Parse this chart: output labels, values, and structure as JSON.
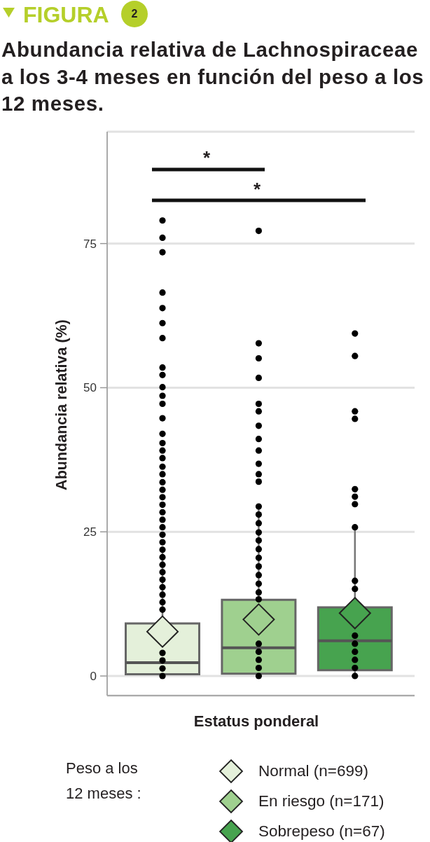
{
  "chart_data": {
    "type": "box",
    "title": "Abundancia relativa de Lachnospiraceae a los 3-4 meses en función del peso a los 12 meses.",
    "annotations": [
      "FIGURA",
      "2",
      "*",
      "*"
    ],
    "xlabel": "Estatus ponderal",
    "ylabel": "Abundancia relativa (%)",
    "legend_title": "Peso a los 12 meses :",
    "categories": [
      null,
      null,
      null
    ],
    "series": [
      {
        "name": "Normal (n=699)",
        "color": "#e4f0da",
        "boxes": [
          {
            "low": 0,
            "q1": 0.3,
            "median": 2.3,
            "q3": 9.1,
            "high": 22.5,
            "mean": 7.7
          },
          null,
          null
        ]
      },
      {
        "name": "En riesgo (n=171)",
        "color": "#9fd08f",
        "boxes": [
          null,
          {
            "low": 0,
            "q1": 0.4,
            "median": 4.9,
            "q3": 13.2,
            "high": 29.2,
            "mean": 9.8
          },
          null
        ]
      },
      {
        "name": "Sobrepeso (n=67)",
        "color": "#47a34f",
        "boxes": [
          null,
          null,
          {
            "low": 0,
            "q1": 1.0,
            "median": 6.1,
            "q3": 11.9,
            "high": 25.6,
            "mean": 10.9
          }
        ]
      },
      {
        "type": "scatter",
        "color": "#000000",
        "marker": "circle",
        "values": [
          79,
          77.2,
          59.4
        ]
      },
      {
        "type": "scatter",
        "color": "#000000",
        "marker": "circle",
        "values": [
          76,
          57.7,
          55.5
        ]
      },
      {
        "type": "scatter",
        "color": "#000000",
        "marker": "circle",
        "values": [
          73.5,
          55.1,
          45.9
        ]
      },
      {
        "type": "scatter",
        "color": "#000000",
        "marker": "circle",
        "values": [
          66.5,
          51.7,
          44.6
        ]
      },
      {
        "type": "scatter",
        "color": "#000000",
        "marker": "circle",
        "values": [
          63.8,
          47.2,
          32.4
        ]
      },
      {
        "type": "scatter",
        "color": "#000000",
        "marker": "circle",
        "values": [
          61.2,
          45.9,
          31.1
        ]
      },
      {
        "type": "scatter",
        "color": "#000000",
        "marker": "circle",
        "values": [
          58.6,
          43.4,
          29.8
        ]
      },
      {
        "type": "scatter",
        "color": "#000000",
        "marker": "circle",
        "values": [
          53.5,
          41.1,
          25.8
        ]
      },
      {
        "type": "scatter",
        "color": "#000000",
        "marker": "circle",
        "values": [
          52.2,
          39.1,
          16.5
        ]
      },
      {
        "type": "scatter",
        "color": "#000000",
        "marker": "circle",
        "values": [
          50.1,
          36.8,
          15.1
        ]
      },
      {
        "type": "scatter",
        "color": "#000000",
        "marker": "circle",
        "values": [
          48.6,
          35,
          7
        ]
      },
      {
        "type": "scatter",
        "color": "#000000",
        "marker": "circle",
        "values": [
          47.2,
          33.7,
          5.6
        ]
      },
      {
        "type": "scatter",
        "color": "#000000",
        "marker": "circle",
        "values": [
          44.7,
          29.4,
          4.2
        ]
      },
      {
        "type": "scatter",
        "color": "#000000",
        "marker": "circle",
        "values": [
          42,
          28,
          2.8
        ]
      },
      {
        "type": "scatter",
        "color": "#000000",
        "marker": "circle",
        "values": [
          40.4,
          26.5,
          1.4
        ]
      },
      {
        "type": "scatter",
        "color": "#000000",
        "marker": "circle",
        "values": [
          39.1,
          24.9,
          0
        ]
      },
      {
        "type": "scatter",
        "color": "#000000",
        "marker": "circle",
        "values": [
          37.8,
          23.5,
          null
        ]
      },
      {
        "type": "scatter",
        "color": "#000000",
        "marker": "circle",
        "values": [
          36.3,
          22,
          null
        ]
      },
      {
        "type": "scatter",
        "color": "#000000",
        "marker": "circle",
        "values": [
          35,
          20.5,
          null
        ]
      },
      {
        "type": "scatter",
        "color": "#000000",
        "marker": "circle",
        "values": [
          33.6,
          19,
          null
        ]
      },
      {
        "type": "scatter",
        "color": "#000000",
        "marker": "circle",
        "values": [
          32.3,
          17.5,
          null
        ]
      },
      {
        "type": "scatter",
        "color": "#000000",
        "marker": "circle",
        "values": [
          31,
          16,
          null
        ]
      },
      {
        "type": "scatter",
        "color": "#000000",
        "marker": "circle",
        "values": [
          29.7,
          14.5,
          null
        ]
      },
      {
        "type": "scatter",
        "color": "#000000",
        "marker": "circle",
        "values": [
          28.4,
          13.3,
          null
        ]
      },
      {
        "type": "scatter",
        "color": "#000000",
        "marker": "circle",
        "values": [
          27.1,
          5.6,
          null
        ]
      },
      {
        "type": "scatter",
        "color": "#000000",
        "marker": "circle",
        "values": [
          25.8,
          4.2,
          null
        ]
      },
      {
        "type": "scatter",
        "color": "#000000",
        "marker": "circle",
        "values": [
          24.5,
          2.8,
          null
        ]
      },
      {
        "type": "scatter",
        "color": "#000000",
        "marker": "circle",
        "values": [
          23.2,
          1.4,
          null
        ]
      },
      {
        "type": "scatter",
        "color": "#000000",
        "marker": "circle",
        "values": [
          21.9,
          0,
          null
        ]
      },
      {
        "type": "scatter",
        "color": "#000000",
        "marker": "circle",
        "values": [
          20.6,
          null,
          null
        ]
      },
      {
        "type": "scatter",
        "color": "#000000",
        "marker": "circle",
        "values": [
          19.3,
          null,
          null
        ]
      },
      {
        "type": "scatter",
        "color": "#000000",
        "marker": "circle",
        "values": [
          18,
          null,
          null
        ]
      },
      {
        "type": "scatter",
        "color": "#000000",
        "marker": "circle",
        "values": [
          16.7,
          null,
          null
        ]
      },
      {
        "type": "scatter",
        "color": "#000000",
        "marker": "circle",
        "values": [
          15.4,
          null,
          null
        ]
      },
      {
        "type": "scatter",
        "color": "#000000",
        "marker": "circle",
        "values": [
          14.1,
          null,
          null
        ]
      },
      {
        "type": "scatter",
        "color": "#000000",
        "marker": "circle",
        "values": [
          12.8,
          null,
          null
        ]
      },
      {
        "type": "scatter",
        "color": "#000000",
        "marker": "circle",
        "values": [
          11.5,
          null,
          null
        ]
      },
      {
        "type": "scatter",
        "color": "#000000",
        "marker": "circle",
        "values": [
          4,
          null,
          null
        ]
      },
      {
        "type": "scatter",
        "color": "#000000",
        "marker": "circle",
        "values": [
          2.7,
          null,
          null
        ]
      },
      {
        "type": "scatter",
        "color": "#000000",
        "marker": "circle",
        "values": [
          1.3,
          null,
          null
        ]
      },
      {
        "type": "scatter",
        "color": "#000000",
        "marker": "circle",
        "values": [
          0,
          null,
          null
        ]
      }
    ],
    "ylim": [
      -3.4,
      94.4
    ],
    "yticks": [
      0,
      25,
      50,
      75
    ],
    "grid": "y",
    "legend": "bottom",
    "tick_labels": "y"
  }
}
